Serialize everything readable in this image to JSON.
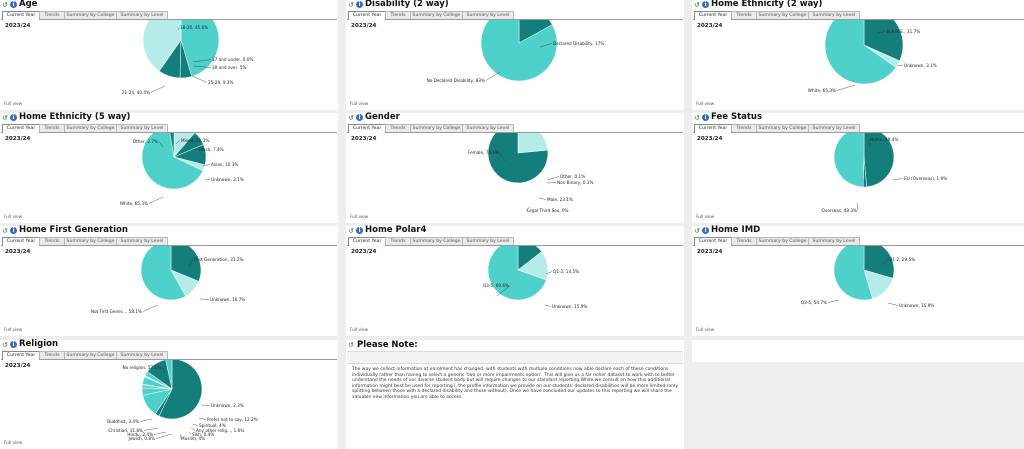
{
  "common": {
    "tabs": [
      "Current Year",
      "Trends",
      "Summary by College",
      "Summary by Level"
    ],
    "year": "2023/24",
    "full_view": "Full view",
    "colors": {
      "dark": "#147e7b",
      "mid": "#4fd1cb",
      "light": "#b5ecea",
      "leader": "#333333"
    }
  },
  "panels": [
    {
      "title": "Age"
    },
    {
      "title": "Disability (2 way)"
    },
    {
      "title": "Home Ethnicity (2 way)"
    },
    {
      "title": "Home Ethnicity (5 way)"
    },
    {
      "title": "Gender"
    },
    {
      "title": "Fee Status"
    },
    {
      "title": "Home First Generation"
    },
    {
      "title": "Home Polar4"
    },
    {
      "title": "Home IMD"
    },
    {
      "title": "Religion"
    }
  ],
  "note": {
    "title": "Please Note:",
    "text": "The way we collect information at enrolment has changed, with students with multiple conditions now able declare each of these conditions individually rather than having to select a generic 'two or more impairments option'. This will give us a far richer dataset to work with to better understand the needs of our diverse student body but will require changes to our standard reporting.While we consult on how this additional information might best be used for reporting l, the profile information we provide on our students' declared disabilities will be more limited (only splitting between those with a declared disability and those without). Once we have concluded our updates to this reporting we will share the valuable new information you are able to access."
  },
  "chart_data": [
    {
      "type": "pie",
      "title": "Age",
      "categories": [
        "18-20",
        "17 and under",
        "30 and over",
        "25-29",
        "21-24"
      ],
      "values": [
        45.6,
        0.0,
        5,
        9.3,
        40.4
      ],
      "labels": [
        "18-20, 45.6%",
        "17 and under, 0.0%",
        "30 and over, 5%",
        "25-29, 9.3%",
        "21-24, 40.4%"
      ]
    },
    {
      "type": "pie",
      "title": "Disability (2 way)",
      "categories": [
        "Declared Disability",
        "No Declared Disability"
      ],
      "values": [
        17,
        83
      ],
      "labels": [
        "Declared Disability, 17%",
        "No Declared Disability, 83%"
      ]
    },
    {
      "type": "pie",
      "title": "Home Ethnicity (2 way)",
      "categories": [
        "B.A.M.E.",
        "Unknown",
        "White"
      ],
      "values": [
        31.7,
        3.1,
        65.3
      ],
      "labels": [
        "B.A.M.E., 31.7%",
        "Unknown, 3.1%",
        "White, 65.3%"
      ]
    },
    {
      "type": "pie",
      "title": "Home Ethnicity (5 way)",
      "categories": [
        "Mixed",
        "Black",
        "Asian",
        "Unknown",
        "White",
        "Other"
      ],
      "values": [
        11.3,
        7.4,
        10.3,
        3.1,
        65.3,
        2.7
      ],
      "labels": [
        "Mixed, 11.3%",
        "Black, 7.4%",
        "Asian, 10.3%",
        "Unknown, 3.1%",
        "White, 65.3%",
        "Other, 2.7%"
      ]
    },
    {
      "type": "pie",
      "title": "Gender",
      "categories": [
        "Other",
        "Non Binary",
        "Male",
        "Legal Third Sex",
        "Female"
      ],
      "values": [
        0.1,
        0.3,
        23.1,
        0,
        76.6
      ],
      "labels": [
        "Other, 0.1%",
        "Non Binary, 0.3%",
        "Male, 23.1%",
        "Legal Third Sex, 0%",
        "Female, 76.6%"
      ]
    },
    {
      "type": "pie",
      "title": "Fee Status",
      "categories": [
        "Home",
        "EU (Overseas)",
        "Overseas"
      ],
      "values": [
        48.4,
        1.9,
        49.3
      ],
      "labels": [
        "Home, 48.4%",
        "EU (Overseas), 1.9%",
        "Overseas, 49.3%"
      ]
    },
    {
      "type": "pie",
      "title": "Home First Generation",
      "categories": [
        "First Generation",
        "Unknown",
        "Not First Gener..."
      ],
      "values": [
        31.2,
        10.7,
        58.1
      ],
      "labels": [
        "First Generation, 31.2%",
        "Unknown, 10.7%",
        "Not First Gener..., 58.1%"
      ]
    },
    {
      "type": "pie",
      "title": "Home Polar4",
      "categories": [
        "Q1-2",
        "Unknown",
        "Q3-5"
      ],
      "values": [
        14.5,
        15.9,
        69.6
      ],
      "labels": [
        "Q1-2, 14.5%",
        "Unknown, 15.9%",
        "Q3-5, 69.6%"
      ]
    },
    {
      "type": "pie",
      "title": "Home IMD",
      "categories": [
        "Q1-2",
        "Unknown",
        "Q3-5"
      ],
      "values": [
        29.5,
        15.9,
        54.7
      ],
      "labels": [
        "Q1-2, 29.5%",
        "Unknown, 15.9%",
        "Q3-5, 54.7%"
      ]
    },
    {
      "type": "pie",
      "title": "Religion",
      "categories": [
        "No religion",
        "Unknown",
        "Prefer not to say",
        "Spiritual",
        "Any other relig...",
        "Sikh",
        "Muslim",
        "Jewish",
        "Hindu",
        "Christian",
        "Buddhist"
      ],
      "values": [
        57.1,
        2.3,
        12.2,
        4,
        1.6,
        0.4,
        4,
        0.8,
        2.4,
        11.8,
        3.4
      ],
      "labels": [
        "No religion, 57.1%",
        "Unknown, 2.3%",
        "Prefer not to say, 12.2%",
        "Spiritual, 4%",
        "Any other relig..., 1.6%",
        "Sikh, 0.4%",
        "Muslim, 4%",
        "Jewish, 0.8%",
        "Hindu, 2.4%",
        "Christian, 11.8%",
        "Buddhist, 3.4%"
      ]
    }
  ]
}
